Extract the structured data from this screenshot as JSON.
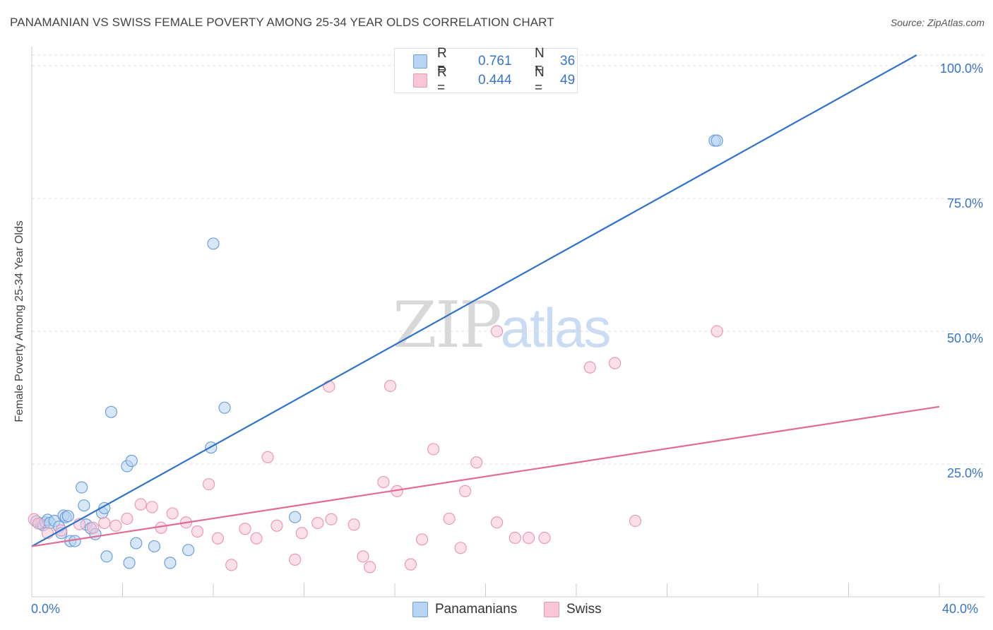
{
  "title": "PANAMANIAN VS SWISS FEMALE POVERTY AMONG 25-34 YEAR OLDS CORRELATION CHART",
  "source": "Source: ZipAtlas.com",
  "watermark": {
    "zip": "ZIP",
    "atlas": "atlas"
  },
  "legend_top": {
    "rows": [
      {
        "r_label": "R =",
        "r_value": "0.761",
        "n_label": "N =",
        "n_value": "36"
      },
      {
        "r_label": "R =",
        "r_value": "0.444",
        "n_label": "N =",
        "n_value": "49"
      }
    ]
  },
  "legend_bottom": [
    "Panamanians",
    "Swiss"
  ],
  "axis_labels": {
    "x_min": "0.0%",
    "x_max": "40.0%",
    "y_ticks": [
      "100.0%",
      "75.0%",
      "50.0%",
      "25.0%"
    ]
  },
  "colors": {
    "panamanians_fill": "#b8d3f3",
    "panamanians_stroke": "#6c9fdb",
    "panamanians_line": "#2f72c9",
    "swiss_fill": "#f8c6d6",
    "swiss_stroke": "#e89ab4",
    "swiss_line": "#e26a95",
    "grid": "#dddddd",
    "tick_label": "#3a74c8"
  },
  "chart_data": {
    "type": "scatter",
    "title": "PANAMANIAN VS SWISS FEMALE POVERTY AMONG 25-34 YEAR OLDS CORRELATION CHART",
    "xlabel": "",
    "ylabel": "Female Poverty Among 25-34 Year Olds",
    "xlim": [
      0,
      40
    ],
    "ylim": [
      0,
      102
    ],
    "x_ticks": [
      0,
      4,
      8,
      12,
      16,
      20,
      24,
      28,
      32,
      36,
      40
    ],
    "y_ticks": [
      25,
      50,
      75,
      100
    ],
    "grid": true,
    "legend_position": "bottom",
    "series": [
      {
        "name": "Panamanians",
        "R": 0.761,
        "N": 36,
        "trend": {
          "x": [
            0,
            39
          ],
          "y": [
            9.5,
            102
          ]
        },
        "points": [
          [
            0.2,
            14.2
          ],
          [
            0.4,
            13.8
          ],
          [
            0.5,
            13.5
          ],
          [
            0.6,
            14.0
          ],
          [
            0.7,
            14.5
          ],
          [
            0.8,
            13.9
          ],
          [
            1.0,
            14.3
          ],
          [
            1.2,
            13.2
          ],
          [
            1.3,
            12.0
          ],
          [
            1.4,
            15.3
          ],
          [
            1.5,
            15.0
          ],
          [
            1.6,
            15.2
          ],
          [
            1.7,
            10.5
          ],
          [
            1.9,
            10.5
          ],
          [
            2.2,
            20.6
          ],
          [
            2.3,
            17.2
          ],
          [
            2.4,
            13.6
          ],
          [
            2.6,
            12.9
          ],
          [
            2.8,
            11.8
          ],
          [
            3.1,
            15.8
          ],
          [
            3.2,
            16.7
          ],
          [
            3.3,
            7.6
          ],
          [
            3.5,
            34.8
          ],
          [
            4.2,
            24.6
          ],
          [
            4.3,
            6.4
          ],
          [
            4.4,
            25.6
          ],
          [
            4.6,
            10.1
          ],
          [
            5.4,
            9.5
          ],
          [
            6.1,
            6.4
          ],
          [
            6.9,
            8.8
          ],
          [
            7.9,
            28.1
          ],
          [
            8.0,
            66.5
          ],
          [
            8.5,
            35.6
          ],
          [
            11.6,
            15.0
          ],
          [
            30.1,
            85.9
          ],
          [
            30.2,
            85.9
          ]
        ]
      },
      {
        "name": "Swiss",
        "R": 0.444,
        "N": 49,
        "trend": {
          "x": [
            0,
            40
          ],
          "y": [
            9.5,
            35.8
          ]
        },
        "points": [
          [
            0.1,
            14.6
          ],
          [
            0.3,
            13.8
          ],
          [
            0.7,
            12.0
          ],
          [
            1.3,
            12.5
          ],
          [
            2.1,
            13.7
          ],
          [
            2.7,
            13.0
          ],
          [
            3.2,
            13.9
          ],
          [
            3.7,
            13.4
          ],
          [
            4.2,
            14.7
          ],
          [
            4.8,
            17.4
          ],
          [
            5.3,
            16.9
          ],
          [
            5.7,
            13.0
          ],
          [
            6.2,
            15.7
          ],
          [
            6.8,
            14.0
          ],
          [
            7.3,
            12.3
          ],
          [
            7.8,
            21.2
          ],
          [
            8.2,
            11.0
          ],
          [
            8.8,
            6.0
          ],
          [
            9.4,
            12.8
          ],
          [
            9.9,
            11.0
          ],
          [
            10.4,
            26.3
          ],
          [
            10.8,
            13.4
          ],
          [
            11.6,
            7.0
          ],
          [
            11.9,
            12.0
          ],
          [
            12.6,
            13.9
          ],
          [
            13.2,
            14.6
          ],
          [
            13.1,
            39.6
          ],
          [
            14.2,
            13.6
          ],
          [
            14.6,
            7.6
          ],
          [
            14.9,
            5.6
          ],
          [
            15.5,
            21.6
          ],
          [
            15.8,
            39.7
          ],
          [
            16.1,
            19.9
          ],
          [
            16.7,
            6.1
          ],
          [
            17.2,
            10.8
          ],
          [
            17.7,
            27.8
          ],
          [
            18.4,
            14.7
          ],
          [
            18.9,
            9.2
          ],
          [
            19.1,
            19.9
          ],
          [
            19.6,
            25.3
          ],
          [
            20.5,
            14.0
          ],
          [
            20.5,
            50.0
          ],
          [
            21.3,
            11.1
          ],
          [
            21.9,
            11.1
          ],
          [
            22.6,
            11.1
          ],
          [
            24.6,
            43.2
          ],
          [
            25.7,
            44.0
          ],
          [
            26.6,
            14.3
          ],
          [
            30.2,
            50.0
          ]
        ]
      }
    ]
  }
}
